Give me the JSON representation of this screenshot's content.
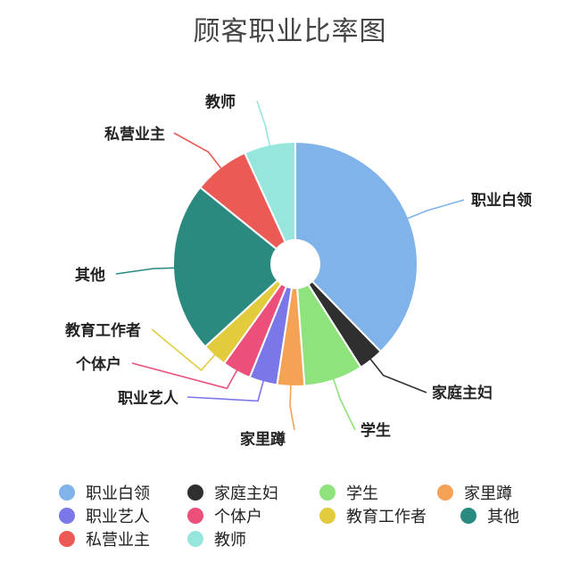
{
  "title": "顾客职业比率图",
  "chart_data": {
    "type": "pie",
    "title": "顾客职业比率图",
    "donut": true,
    "legend_position": "bottom",
    "unit": "percent (estimated from slice angles)",
    "categories": [
      "职业白领",
      "家庭主妇",
      "学生",
      "家里蹲",
      "职业艺人",
      "个体户",
      "教育工作者",
      "其他",
      "私营业主",
      "教师"
    ],
    "values": [
      37.7,
      3.3,
      7.8,
      3.6,
      3.7,
      3.8,
      3.3,
      22.6,
      7.4,
      6.8
    ],
    "colors": [
      "#7fb3ea",
      "#2f2f2f",
      "#8ee37c",
      "#f6a255",
      "#7a78e8",
      "#ec4f7a",
      "#e2cb3c",
      "#2a8a80",
      "#ec5a56",
      "#96e6de"
    ]
  },
  "legend": [
    {
      "label": "职业白领",
      "color": "#7fb3ea"
    },
    {
      "label": "家庭主妇",
      "color": "#2f2f2f"
    },
    {
      "label": "学生",
      "color": "#8ee37c"
    },
    {
      "label": "家里蹲",
      "color": "#f6a255"
    },
    {
      "label": "职业艺人",
      "color": "#7a78e8"
    },
    {
      "label": "个体户",
      "color": "#ec4f7a"
    },
    {
      "label": "教育工作者",
      "color": "#e2cb3c"
    },
    {
      "label": "其他",
      "color": "#2a8a80"
    },
    {
      "label": "私营业主",
      "color": "#ec5a56"
    },
    {
      "label": "教师",
      "color": "#96e6de"
    }
  ]
}
